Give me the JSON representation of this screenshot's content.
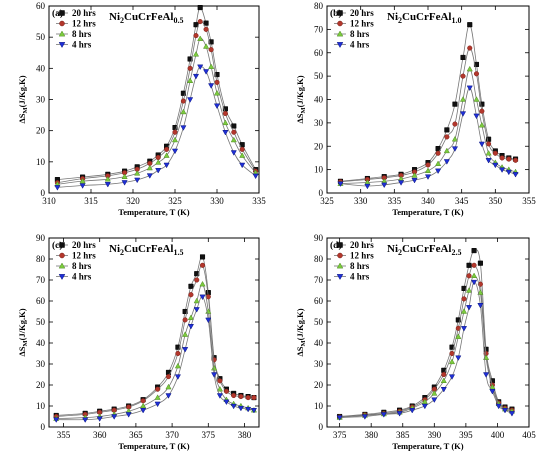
{
  "figure": {
    "markers": [
      "square",
      "circle",
      "triangle-up",
      "triangle-down"
    ],
    "panels": [
      {
        "panel_label": "(a)",
        "title_main": "Ni",
        "title_parts": [
          [
            "Ni",
            ""
          ],
          [
            "2",
            "sub"
          ],
          [
            "CuCrFeAl",
            ""
          ],
          [
            "0.5",
            "sub"
          ]
        ],
        "title": "Ni2CuCrFeAl0.5",
        "xlabel": "Temperature, T (K)",
        "ylabel": "ΔSM(J/Kg.K)",
        "xlim": [
          310,
          335
        ],
        "ylim": [
          0,
          60
        ],
        "xticks": [
          "310",
          "315",
          "320",
          "325",
          "330",
          "335"
        ],
        "yticks": [
          "0",
          "10",
          "20",
          "30",
          "40",
          "50",
          "60"
        ],
        "legend": [
          "20 hrs",
          "12 hrs",
          "8 hrs",
          "4 hrs"
        ]
      },
      {
        "panel_label": "(b)",
        "title_parts": [
          [
            "Ni",
            ""
          ],
          [
            "2",
            "sub"
          ],
          [
            "CuCrFeAl",
            ""
          ],
          [
            "1.0",
            "sub"
          ]
        ],
        "title": "Ni2CuCrFeAl1.0",
        "xlabel": "Temperature, T (K)",
        "ylabel": "ΔSM(J/Kg.K)",
        "xlim": [
          325,
          355
        ],
        "ylim": [
          0,
          80
        ],
        "xticks": [
          "325",
          "330",
          "335",
          "340",
          "345",
          "350",
          "355"
        ],
        "yticks": [
          "0",
          "10",
          "20",
          "30",
          "40",
          "50",
          "60",
          "70",
          "80"
        ],
        "legend": [
          "20 hrs",
          "12 hrs",
          "8 hrs",
          "4 hrs"
        ]
      },
      {
        "panel_label": "(c)",
        "title_parts": [
          [
            "Ni",
            ""
          ],
          [
            "2",
            "sub"
          ],
          [
            "CuCrFeAl",
            ""
          ],
          [
            "1.5",
            "sub"
          ]
        ],
        "title": "Ni2CuCrFeAl1.5",
        "xlabel": "Temperature, T (K)",
        "ylabel": "ΔSM(J/Kg.K)",
        "xlim": [
          353,
          382
        ],
        "ylim": [
          0,
          90
        ],
        "xticks": [
          "355",
          "360",
          "365",
          "370",
          "375",
          "380"
        ],
        "yticks": [
          "0",
          "10",
          "20",
          "30",
          "40",
          "50",
          "60",
          "70",
          "80",
          "90"
        ],
        "legend": [
          "20 hrs",
          "12 hrs",
          "8 hrs",
          "4 hrs"
        ]
      },
      {
        "panel_label": "(d)",
        "title_parts": [
          [
            "Ni",
            ""
          ],
          [
            "2",
            "sub"
          ],
          [
            "CuCrFeAl",
            ""
          ],
          [
            "2.5",
            "sub"
          ]
        ],
        "title": "Ni2CuCrFeAl2.5",
        "xlabel": "Temperature, T (K)",
        "ylabel": "ΔSM(J/Kg.K)",
        "xlim": [
          373,
          405
        ],
        "ylim": [
          0,
          90
        ],
        "xticks": [
          "375",
          "380",
          "385",
          "390",
          "395",
          "400",
          "405"
        ],
        "yticks": [
          "0",
          "10",
          "20",
          "30",
          "40",
          "50",
          "60",
          "70",
          "80",
          "90"
        ],
        "legend": [
          "20 hrs",
          "12 hrs",
          "8 hrs",
          "4 hrs"
        ]
      }
    ]
  },
  "colors": {
    "series": [
      "#111111",
      "#b3372c",
      "#7ccb3e",
      "#1f2fd6"
    ],
    "fit_line": "#777777",
    "series_edge": [
      "#000000",
      "#7a1f18",
      "#4d8a22",
      "#0b1680"
    ]
  },
  "chart_data": [
    {
      "type": "scatter",
      "title": "Ni2CuCrFeAl0.5",
      "xlabel": "Temperature, T (K)",
      "ylabel": "ΔSM(J/Kg.K)",
      "xlim": [
        310,
        335
      ],
      "ylim": [
        0,
        60
      ],
      "grid": false,
      "legend_position": "top-left",
      "series": [
        {
          "name": "20 hrs",
          "x": [
            311,
            314,
            317,
            319,
            320.5,
            322,
            323,
            324,
            325,
            326,
            326.8,
            327.5,
            328,
            328.7,
            329.3,
            330,
            331,
            332,
            333,
            334.6
          ],
          "y": [
            4.3,
            5.1,
            6.0,
            7.0,
            8.4,
            10.2,
            12.2,
            15.0,
            21.0,
            32.0,
            43.0,
            54.0,
            59.5,
            54.5,
            48.5,
            38.0,
            27.0,
            21.5,
            15.5,
            7.5
          ]
        },
        {
          "name": "12 hrs",
          "x": [
            311,
            314,
            317,
            319,
            320.5,
            322,
            323,
            324,
            325,
            326,
            326.8,
            327.5,
            328,
            328.7,
            329.3,
            330,
            331,
            332,
            333,
            334.6
          ],
          "y": [
            3.3,
            4.6,
            5.5,
            6.5,
            7.6,
            9.5,
            11.4,
            14.0,
            19.5,
            29.5,
            40.0,
            50.5,
            55.0,
            52.5,
            46.0,
            35.5,
            25.5,
            19.5,
            14.0,
            7.0
          ]
        },
        {
          "name": "8 hrs",
          "x": [
            311,
            314,
            317,
            319,
            320.5,
            322,
            323,
            324,
            325,
            326,
            326.8,
            327.5,
            328,
            328.7,
            329.3,
            330,
            331,
            332,
            333,
            334.6
          ],
          "y": [
            2.8,
            3.8,
            4.4,
            5.2,
            6.3,
            8.0,
            9.8,
            12.0,
            17.0,
            26.0,
            36.0,
            44.5,
            49.5,
            47.0,
            40.5,
            32.0,
            22.5,
            17.0,
            12.0,
            6.5
          ]
        },
        {
          "name": "4 hrs",
          "x": [
            311,
            314,
            317,
            319,
            320.5,
            322,
            323,
            324,
            325,
            326,
            326.8,
            327.5,
            328,
            328.7,
            329.3,
            330,
            331,
            332,
            333,
            334.6
          ],
          "y": [
            1.8,
            2.4,
            2.8,
            3.4,
            4.2,
            5.6,
            7.3,
            9.0,
            13.5,
            21.0,
            30.0,
            37.5,
            40.5,
            39.0,
            34.5,
            28.0,
            19.5,
            13.0,
            9.0,
            5.5
          ]
        }
      ]
    },
    {
      "type": "scatter",
      "title": "Ni2CuCrFeAl1.0",
      "xlabel": "Temperature, T (K)",
      "ylabel": "ΔSM(J/Kg.K)",
      "xlim": [
        325,
        355
      ],
      "ylim": [
        0,
        80
      ],
      "grid": false,
      "legend_position": "top-left",
      "series": [
        {
          "name": "20 hrs",
          "x": [
            327,
            331,
            333.5,
            336,
            338,
            340,
            341.5,
            342.8,
            344,
            345.2,
            346.2,
            347.2,
            348,
            349,
            350,
            351,
            352,
            353
          ],
          "y": [
            5.0,
            6.2,
            7.0,
            8.0,
            10.0,
            13.0,
            19.0,
            27.0,
            38.0,
            58.0,
            72.0,
            55.0,
            38.0,
            23.0,
            18.0,
            16.0,
            15.0,
            14.5
          ]
        },
        {
          "name": "12 hrs",
          "x": [
            327,
            331,
            333.5,
            336,
            338,
            340,
            341.5,
            342.8,
            344,
            345.2,
            346.2,
            347.2,
            348,
            349,
            350,
            351,
            352,
            353
          ],
          "y": [
            4.8,
            5.8,
            6.5,
            7.5,
            9.0,
            12.0,
            17.0,
            24.0,
            29.5,
            50.0,
            62.0,
            51.0,
            35.0,
            21.0,
            17.0,
            15.0,
            14.5,
            14.0
          ]
        },
        {
          "name": "8 hrs",
          "x": [
            327,
            331,
            333.5,
            336,
            338,
            340,
            341.5,
            342.8,
            344,
            345.2,
            346.2,
            347.2,
            348,
            349,
            350,
            351,
            352,
            353
          ],
          "y": [
            4.0,
            4.5,
            5.0,
            6.0,
            7.5,
            9.5,
            12.5,
            18.0,
            23.0,
            40.0,
            53.0,
            40.0,
            29.0,
            17.0,
            13.0,
            11.0,
            10.0,
            9.0
          ]
        },
        {
          "name": "4 hrs",
          "x": [
            327,
            331,
            333.5,
            336,
            338,
            340,
            341.5,
            342.8,
            344,
            345.2,
            346.2,
            347.2,
            348,
            349,
            350,
            351,
            352,
            353
          ],
          "y": [
            4.0,
            3.0,
            3.5,
            4.5,
            5.5,
            7.0,
            9.5,
            13.5,
            19.0,
            34.0,
            45.0,
            33.0,
            21.0,
            14.0,
            12.0,
            10.0,
            9.0,
            8.0
          ]
        }
      ]
    },
    {
      "type": "scatter",
      "title": "Ni2CuCrFeAl1.5",
      "xlabel": "Temperature, T (K)",
      "ylabel": "ΔSM(J/Kg.K)",
      "xlim": [
        353,
        382
      ],
      "ylim": [
        0,
        90
      ],
      "grid": false,
      "legend_position": "top-left",
      "series": [
        {
          "name": "20 hrs",
          "x": [
            354,
            358,
            360,
            362,
            364,
            366,
            368,
            369.5,
            370.8,
            371.8,
            372.6,
            373.4,
            374.2,
            375,
            375.8,
            376.6,
            377.5,
            378.5,
            379.5,
            380.5,
            381.3
          ],
          "y": [
            5.5,
            6.5,
            7.5,
            8.5,
            10.0,
            13.0,
            19.0,
            26.0,
            38.0,
            55.0,
            67.0,
            73.0,
            81.0,
            64.0,
            33.0,
            23.0,
            18.0,
            16.0,
            15.0,
            14.5,
            14.0
          ]
        },
        {
          "name": "12 hrs",
          "x": [
            354,
            358,
            360,
            362,
            364,
            366,
            368,
            369.5,
            370.8,
            371.8,
            372.6,
            373.4,
            374.2,
            375,
            375.8,
            376.6,
            377.5,
            378.5,
            379.5,
            380.5,
            381.3
          ],
          "y": [
            5.0,
            6.0,
            7.0,
            8.0,
            9.5,
            12.5,
            18.0,
            24.0,
            35.0,
            51.0,
            63.0,
            70.0,
            77.0,
            62.0,
            32.0,
            22.0,
            17.0,
            15.0,
            14.5,
            14.0,
            14.0
          ]
        },
        {
          "name": "8 hrs",
          "x": [
            354,
            358,
            360,
            362,
            364,
            366,
            368,
            369.5,
            370.8,
            371.8,
            372.6,
            373.4,
            374.2,
            375,
            375.8,
            376.6,
            377.5,
            378.5,
            379.5,
            380.5,
            381.3
          ],
          "y": [
            4.0,
            4.5,
            5.0,
            6.0,
            7.5,
            10.0,
            14.0,
            19.0,
            29.0,
            44.0,
            52.0,
            60.0,
            68.0,
            55.0,
            28.0,
            18.0,
            13.0,
            11.0,
            10.0,
            9.0,
            8.0
          ]
        },
        {
          "name": "4 hrs",
          "x": [
            354,
            358,
            360,
            362,
            364,
            366,
            368,
            369.5,
            370.8,
            371.8,
            372.6,
            373.4,
            374.2,
            375,
            375.8,
            376.6,
            377.5,
            378.5,
            379.5,
            380.5,
            381.3
          ],
          "y": [
            3.5,
            3.5,
            4.0,
            5.0,
            6.0,
            8.0,
            11.0,
            15.0,
            24.0,
            37.0,
            48.0,
            56.0,
            62.0,
            51.0,
            25.0,
            15.0,
            12.0,
            10.0,
            9.0,
            8.5,
            8.0
          ]
        }
      ]
    },
    {
      "type": "scatter",
      "title": "Ni2CuCrFeAl2.5",
      "xlabel": "Temperature, T (K)",
      "ylabel": "ΔSM(J/Kg.K)",
      "xlim": [
        373,
        405
      ],
      "ylim": [
        0,
        90
      ],
      "grid": false,
      "legend_position": "top-left",
      "series": [
        {
          "name": "20 hrs",
          "x": [
            375,
            379,
            382,
            384.5,
            386.5,
            388.5,
            390,
            391.5,
            392.8,
            393.8,
            394.7,
            395.5,
            396.3,
            397.3,
            398.2,
            399.2,
            400.2,
            401.2,
            402.3
          ],
          "y": [
            5.0,
            6.0,
            7.0,
            8.0,
            10.0,
            14.0,
            19.0,
            27.0,
            38.0,
            51.0,
            66.0,
            77.0,
            84.0,
            78.0,
            37.0,
            22.0,
            12.0,
            9.5,
            8.5
          ]
        },
        {
          "name": "12 hrs",
          "x": [
            375,
            379,
            382,
            384.5,
            386.5,
            388.5,
            390,
            391.5,
            392.8,
            393.8,
            394.7,
            395.5,
            396.3,
            397.3,
            398.2,
            399.2,
            400.2,
            401.2,
            402.3
          ],
          "y": [
            4.8,
            5.8,
            6.5,
            7.5,
            9.5,
            13.0,
            18.0,
            25.0,
            35.0,
            47.0,
            61.0,
            72.0,
            77.0,
            68.0,
            35.0,
            20.0,
            11.5,
            9.0,
            8.0
          ]
        },
        {
          "name": "8 hrs",
          "x": [
            375,
            379,
            382,
            384.5,
            386.5,
            388.5,
            390,
            391.5,
            392.8,
            393.8,
            394.7,
            395.5,
            396.3,
            397.3,
            398.2,
            399.2,
            400.2,
            401.2,
            402.3
          ],
          "y": [
            4.5,
            5.5,
            6.2,
            7.0,
            9.0,
            12.0,
            16.0,
            22.0,
            31.0,
            43.0,
            55.0,
            65.0,
            72.0,
            64.0,
            33.0,
            19.0,
            11.0,
            8.5,
            7.5
          ]
        },
        {
          "name": "4 hrs",
          "x": [
            375,
            379,
            382,
            384.5,
            386.5,
            388.5,
            390,
            391.5,
            392.8,
            393.8,
            394.7,
            395.5,
            396.3,
            397.3,
            398.2,
            399.2,
            400.2,
            401.2,
            402.3
          ],
          "y": [
            4.5,
            5.0,
            6.0,
            6.5,
            8.0,
            10.0,
            13.0,
            18.0,
            24.0,
            33.0,
            47.0,
            57.0,
            69.0,
            58.0,
            25.0,
            17.0,
            10.0,
            8.0,
            6.5
          ]
        }
      ]
    }
  ]
}
